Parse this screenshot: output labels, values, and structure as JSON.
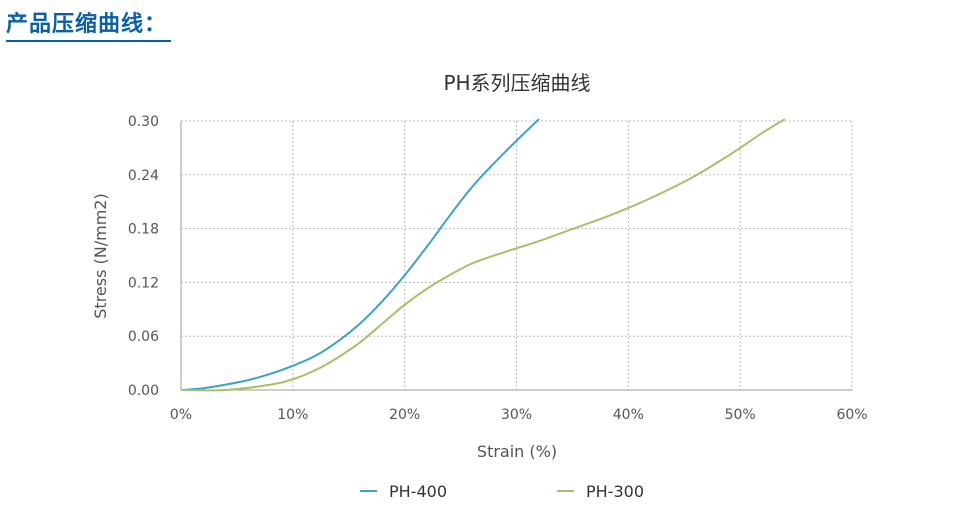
{
  "heading": "产品压缩曲线：",
  "chart_data": {
    "type": "line",
    "title": "PH系列压缩曲线",
    "xlabel": "Strain (%)",
    "ylabel": "Stress (N/mm2)",
    "xlim": [
      0,
      60
    ],
    "ylim": [
      0,
      0.3
    ],
    "x_ticks": [
      0,
      10,
      20,
      30,
      40,
      50,
      60
    ],
    "x_tick_labels": [
      "0%",
      "10%",
      "20%",
      "30%",
      "40%",
      "50%",
      "60%"
    ],
    "y_ticks": [
      0,
      0.06,
      0.12,
      0.18,
      0.24,
      0.3
    ],
    "y_tick_labels": [
      "0.00",
      "0.06",
      "0.12",
      "0.18",
      "0.24",
      "0.30"
    ],
    "grid": true,
    "legend_position": "bottom",
    "series": [
      {
        "name": "PH-400",
        "color": "#3ba3c4",
        "x": [
          0,
          2,
          4,
          6,
          8,
          10,
          12,
          14,
          16,
          18,
          20,
          22,
          24,
          26,
          28,
          30,
          32
        ],
        "y": [
          0,
          0.002,
          0.006,
          0.011,
          0.018,
          0.027,
          0.038,
          0.054,
          0.074,
          0.099,
          0.128,
          0.16,
          0.194,
          0.226,
          0.253,
          0.278,
          0.302
        ]
      },
      {
        "name": "PH-300",
        "color": "#a8c06a",
        "x": [
          0,
          4,
          8,
          10,
          12,
          14,
          16,
          18,
          20,
          22,
          24,
          26,
          28,
          30,
          32,
          34,
          36,
          38,
          40,
          42,
          44,
          46,
          48,
          50,
          52,
          54
        ],
        "y": [
          0,
          0.0,
          0.006,
          0.012,
          0.022,
          0.036,
          0.053,
          0.074,
          0.095,
          0.113,
          0.128,
          0.141,
          0.15,
          0.158,
          0.166,
          0.175,
          0.184,
          0.193,
          0.203,
          0.214,
          0.226,
          0.239,
          0.254,
          0.27,
          0.287,
          0.302
        ]
      }
    ]
  }
}
